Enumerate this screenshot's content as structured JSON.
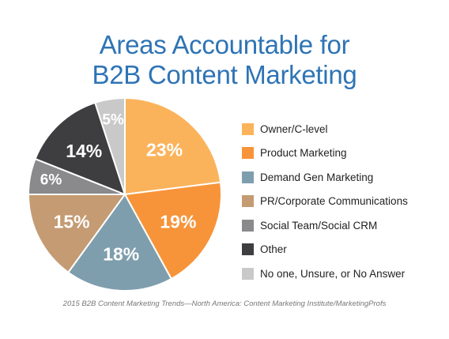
{
  "chart_data": {
    "type": "pie",
    "title_lines": [
      "Areas Accountable for",
      "B2B Content Marketing"
    ],
    "slices": [
      {
        "label": "Owner/C-level",
        "value": 23,
        "value_label": "23%",
        "color": "#fbb35b"
      },
      {
        "label": "Product Marketing",
        "value": 19,
        "value_label": "19%",
        "color": "#f7943a"
      },
      {
        "label": "Demand Gen Marketing",
        "value": 18,
        "value_label": "18%",
        "color": "#7f9ead"
      },
      {
        "label": "PR/Corporate Communications",
        "value": 15,
        "value_label": "15%",
        "color": "#c49b73"
      },
      {
        "label": "Social Team/Social CRM",
        "value": 6,
        "value_label": "6%",
        "color": "#8a8a8c"
      },
      {
        "label": "Other",
        "value": 14,
        "value_label": "14%",
        "color": "#3e3e41"
      },
      {
        "label": "No one, Unsure, or No Answer",
        "value": 5,
        "value_label": "5%",
        "color": "#c9c9c9"
      }
    ],
    "legend_position": "right",
    "source": "2015 B2B Content Marketing Trends—North America: Content Marketing Institute/MarketingProfs"
  }
}
